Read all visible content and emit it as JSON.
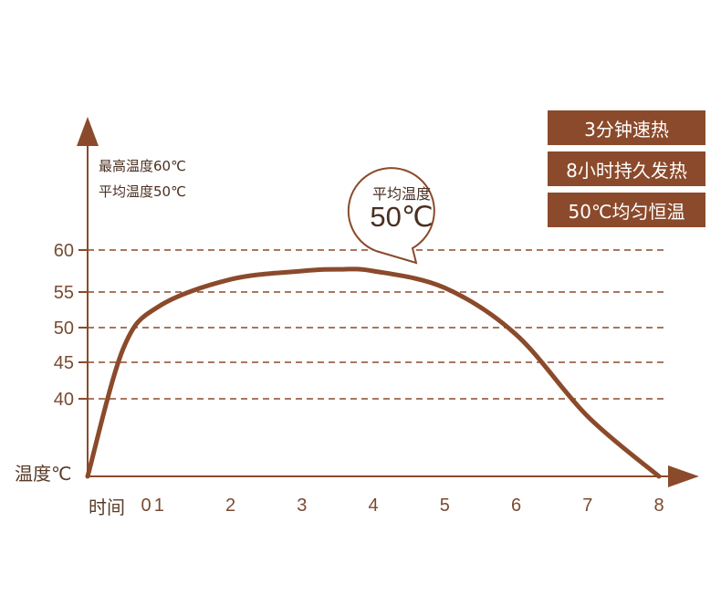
{
  "colors": {
    "axis": "#8b4a2b",
    "curve": "#8b4a2b",
    "grid": "#8b4a2b",
    "tick_text": "#7a4a30",
    "badge_bg": "#8b4a2b",
    "badge_text": "#ffffff"
  },
  "info": {
    "max_temp": "最高温度60℃",
    "avg_temp": "平均温度50℃"
  },
  "badges": [
    "3分钟速热",
    "8小时持久发热",
    "50℃均匀恒温"
  ],
  "bubble": {
    "label": "平均温度",
    "value": "50℃"
  },
  "chart_data": {
    "type": "line",
    "xlabel": "时间",
    "ylabel": "温度℃",
    "x_ticks": [
      "0",
      "1",
      "2",
      "3",
      "4",
      "5",
      "6",
      "7",
      "8"
    ],
    "y_ticks": [
      "40",
      "45",
      "50",
      "55",
      "60"
    ],
    "grid": "dashed horizontal lines at y ticks",
    "series": [
      {
        "x": [
          0,
          0.5,
          1,
          2,
          3,
          3.5,
          4,
          5,
          6,
          7,
          8
        ],
        "y": [
          0,
          47,
          53,
          56.5,
          57.5,
          57.7,
          57.5,
          55.5,
          49,
          31,
          0
        ]
      }
    ]
  }
}
